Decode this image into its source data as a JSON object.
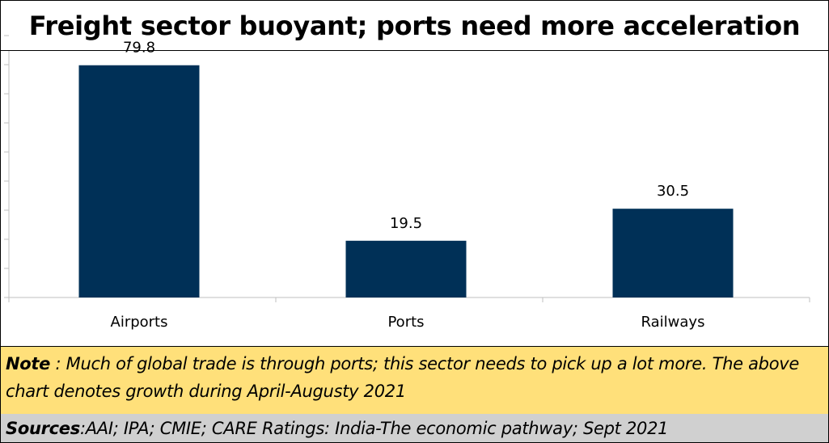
{
  "header": {
    "title": "Freight sector buoyant;  ports need more acceleration"
  },
  "chart_data": {
    "type": "bar",
    "categories": [
      "Airports",
      "Ports",
      "Railways"
    ],
    "values": [
      79.8,
      19.5,
      30.5
    ],
    "data_labels": [
      "79.8",
      "19.5",
      "30.5"
    ],
    "ylim": [
      0,
      90
    ],
    "y_tick_step": 10,
    "y_tick_labels": false,
    "grid": false,
    "legend": "none",
    "bar_color": "#003057",
    "axis_color": "#bfbfbf"
  },
  "note": {
    "label": "Note",
    "text": " : Much of global trade is through ports;  this sector needs to pick up a lot more. The above chart denotes growth during April-Augusty 2021"
  },
  "sources": {
    "label": "Sources",
    "text": " :AAI; IPA; CMIE;  CARE Ratings: India-The economic pathway; Sept 2021"
  },
  "colors": {
    "note_background": "#ffe07a",
    "sources_background": "#d0d0d0"
  }
}
